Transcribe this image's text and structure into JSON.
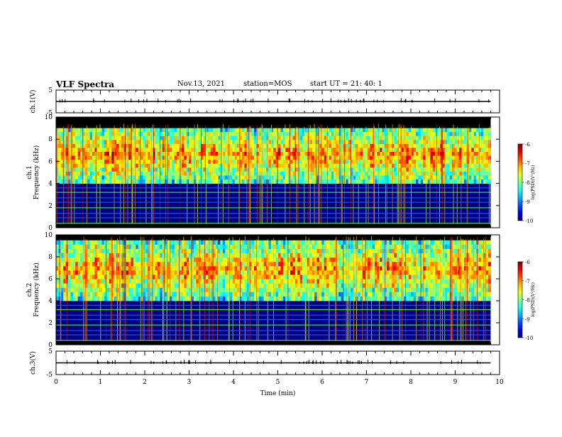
{
  "header": {
    "title": "VLF Spectra",
    "date": "Nov.13, 2021",
    "station": "station=MOS",
    "start": "start  UT =   21: 40: 1"
  },
  "chart_data": [
    {
      "type": "line",
      "panel": "ch1-voltage",
      "ylabel": "ch.1(V)",
      "ylim": [
        -5,
        5
      ],
      "yticks": [
        "5",
        "-5"
      ],
      "series": [
        {
          "x": [
            0,
            9.8
          ],
          "y": [
            0,
            0
          ]
        }
      ]
    },
    {
      "type": "heatmap",
      "panel": "ch1-spectrogram",
      "ylabel": "ch.1\nFrequency (kHz)",
      "ylim": [
        0,
        10
      ],
      "yticks": [
        "0",
        "2",
        "4",
        "6",
        "8",
        "10"
      ],
      "data_extent_min": 9.8,
      "band_kHz": [
        4,
        9
      ],
      "colorbar": {
        "label": "log(PSD)(V²/Hz)",
        "range": [
          -10,
          -6
        ],
        "ticks": [
          "-6",
          "-7",
          "-8",
          "-9",
          "-10"
        ],
        "colormap": "jet"
      }
    },
    {
      "type": "heatmap",
      "panel": "ch2-spectrogram",
      "ylabel": "ch.2\nFrequency (kHz)",
      "ylim": [
        0,
        10
      ],
      "yticks": [
        "0",
        "2",
        "4",
        "6",
        "8",
        "10"
      ],
      "data_extent_min": 9.8,
      "band_kHz": [
        4,
        9.5
      ],
      "colorbar": {
        "label": "log(PSD)(V²/Hz)",
        "range": [
          -10,
          -6
        ],
        "ticks": [
          "-6",
          "-7",
          "-8",
          "-9",
          "-10"
        ],
        "colormap": "jet"
      }
    },
    {
      "type": "line",
      "panel": "ch3-voltage",
      "ylabel": "ch.3(V)",
      "ylim": [
        -5,
        5
      ],
      "yticks": [
        "5",
        "-5"
      ],
      "series": [
        {
          "x": [
            0,
            9.8
          ],
          "y": [
            0,
            0
          ]
        }
      ]
    }
  ],
  "xaxis": {
    "label": "Time (min)",
    "xlim": [
      0,
      10
    ],
    "ticks": [
      "0",
      "1",
      "2",
      "3",
      "4",
      "5",
      "6",
      "7",
      "8",
      "9",
      "10"
    ]
  }
}
